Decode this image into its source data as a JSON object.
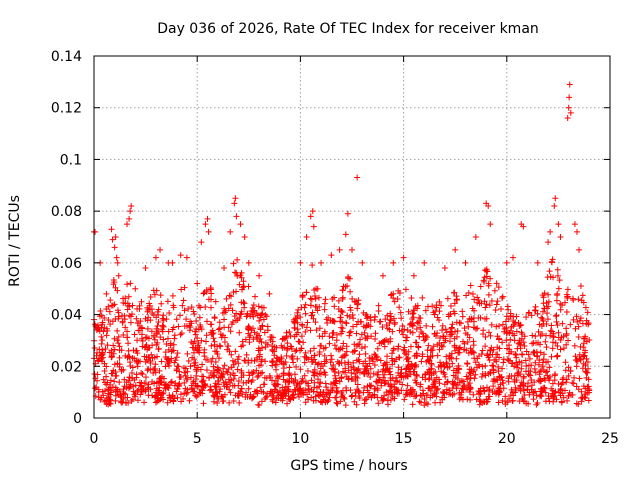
{
  "chart_data": {
    "type": "scatter",
    "title": "Day 036 of 2026, Rate Of TEC Index for receiver kman",
    "xlabel": "GPS time / hours",
    "ylabel": "ROTI / TECUs",
    "xlim": [
      0,
      25
    ],
    "ylim": [
      0,
      0.14
    ],
    "xticks": [
      0,
      5,
      10,
      15,
      20,
      25
    ],
    "xtick_labels": [
      "0",
      "5",
      "10",
      "15",
      "20",
      "25"
    ],
    "yticks": [
      0,
      0.02,
      0.04,
      0.06,
      0.08,
      0.1,
      0.12,
      0.14
    ],
    "ytick_labels": [
      "0",
      "0.02",
      "0.04",
      "0.06",
      "0.08",
      "0.1",
      "0.12",
      "0.14"
    ],
    "grid": true,
    "marker": "plus",
    "color": "#ff0000",
    "data_extent_hours": [
      0,
      24
    ],
    "typical_range": [
      0.01,
      0.04
    ],
    "series": [
      {
        "name": "ROTI",
        "points": [
          [
            0.0,
            0.072
          ],
          [
            0.05,
            0.072
          ],
          [
            0.3,
            0.06
          ],
          [
            0.6,
            0.048
          ],
          [
            0.85,
            0.073
          ],
          [
            0.9,
            0.069
          ],
          [
            1.0,
            0.066
          ],
          [
            1.05,
            0.07
          ],
          [
            1.1,
            0.062
          ],
          [
            1.15,
            0.06
          ],
          [
            1.2,
            0.055
          ],
          [
            1.6,
            0.075
          ],
          [
            1.7,
            0.077
          ],
          [
            1.75,
            0.08
          ],
          [
            1.8,
            0.082
          ],
          [
            2.0,
            0.05
          ],
          [
            2.5,
            0.058
          ],
          [
            3.0,
            0.062
          ],
          [
            3.2,
            0.065
          ],
          [
            3.6,
            0.06
          ],
          [
            3.8,
            0.06
          ],
          [
            4.2,
            0.063
          ],
          [
            4.5,
            0.062
          ],
          [
            5.0,
            0.052
          ],
          [
            5.2,
            0.068
          ],
          [
            5.4,
            0.075
          ],
          [
            5.5,
            0.077
          ],
          [
            5.55,
            0.072
          ],
          [
            5.9,
            0.045
          ],
          [
            6.3,
            0.058
          ],
          [
            6.6,
            0.072
          ],
          [
            6.8,
            0.083
          ],
          [
            6.85,
            0.085
          ],
          [
            6.9,
            0.078
          ],
          [
            7.1,
            0.075
          ],
          [
            7.3,
            0.07
          ],
          [
            7.5,
            0.06
          ],
          [
            8.0,
            0.055
          ],
          [
            8.5,
            0.048
          ],
          [
            10.0,
            0.06
          ],
          [
            10.3,
            0.07
          ],
          [
            10.5,
            0.078
          ],
          [
            10.6,
            0.08
          ],
          [
            10.65,
            0.074
          ],
          [
            11.0,
            0.06
          ],
          [
            11.5,
            0.063
          ],
          [
            11.9,
            0.065
          ],
          [
            12.2,
            0.071
          ],
          [
            12.3,
            0.079
          ],
          [
            12.5,
            0.065
          ],
          [
            12.75,
            0.093
          ],
          [
            13.0,
            0.06
          ],
          [
            14.0,
            0.055
          ],
          [
            14.5,
            0.06
          ],
          [
            15.0,
            0.062
          ],
          [
            15.5,
            0.055
          ],
          [
            16.0,
            0.06
          ],
          [
            17.0,
            0.058
          ],
          [
            17.5,
            0.065
          ],
          [
            18.0,
            0.06
          ],
          [
            18.5,
            0.07
          ],
          [
            19.0,
            0.083
          ],
          [
            19.1,
            0.082
          ],
          [
            19.2,
            0.075
          ],
          [
            20.0,
            0.06
          ],
          [
            20.3,
            0.062
          ],
          [
            20.7,
            0.075
          ],
          [
            20.8,
            0.074
          ],
          [
            21.5,
            0.06
          ],
          [
            22.0,
            0.068
          ],
          [
            22.1,
            0.072
          ],
          [
            22.3,
            0.082
          ],
          [
            22.35,
            0.085
          ],
          [
            22.5,
            0.075
          ],
          [
            22.6,
            0.07
          ],
          [
            22.95,
            0.116
          ],
          [
            23.0,
            0.12
          ],
          [
            23.02,
            0.124
          ],
          [
            23.05,
            0.129
          ],
          [
            23.1,
            0.118
          ],
          [
            23.3,
            0.075
          ],
          [
            23.4,
            0.072
          ],
          [
            23.5,
            0.065
          ],
          [
            12.2,
            0.005
          ],
          [
            3.0,
            0.006
          ],
          [
            8.0,
            0.005
          ],
          [
            16.0,
            0.005
          ]
        ],
        "envelope": [
          [
            0.0,
            0.04
          ],
          [
            0.4,
            0.042
          ],
          [
            0.8,
            0.05
          ],
          [
            1.0,
            0.058
          ],
          [
            1.3,
            0.044
          ],
          [
            1.7,
            0.055
          ],
          [
            2.0,
            0.042
          ],
          [
            2.5,
            0.047
          ],
          [
            3.0,
            0.05
          ],
          [
            3.5,
            0.048
          ],
          [
            4.0,
            0.052
          ],
          [
            4.5,
            0.05
          ],
          [
            5.0,
            0.04
          ],
          [
            5.3,
            0.052
          ],
          [
            5.6,
            0.058
          ],
          [
            5.9,
            0.035
          ],
          [
            6.2,
            0.04
          ],
          [
            6.5,
            0.05
          ],
          [
            6.9,
            0.065
          ],
          [
            7.2,
            0.058
          ],
          [
            7.6,
            0.05
          ],
          [
            8.0,
            0.045
          ],
          [
            8.4,
            0.043
          ],
          [
            8.7,
            0.03
          ],
          [
            9.0,
            0.03
          ],
          [
            9.5,
            0.035
          ],
          [
            10.0,
            0.045
          ],
          [
            10.3,
            0.055
          ],
          [
            10.6,
            0.06
          ],
          [
            11.0,
            0.045
          ],
          [
            11.5,
            0.048
          ],
          [
            12.0,
            0.05
          ],
          [
            12.3,
            0.058
          ],
          [
            12.6,
            0.048
          ],
          [
            13.0,
            0.045
          ],
          [
            13.5,
            0.042
          ],
          [
            14.0,
            0.046
          ],
          [
            14.5,
            0.05
          ],
          [
            15.0,
            0.052
          ],
          [
            15.5,
            0.045
          ],
          [
            16.0,
            0.05
          ],
          [
            16.5,
            0.045
          ],
          [
            17.0,
            0.046
          ],
          [
            17.5,
            0.05
          ],
          [
            18.0,
            0.048
          ],
          [
            18.5,
            0.055
          ],
          [
            19.0,
            0.058
          ],
          [
            19.3,
            0.055
          ],
          [
            19.7,
            0.05
          ],
          [
            20.0,
            0.044
          ],
          [
            20.5,
            0.04
          ],
          [
            21.0,
            0.04
          ],
          [
            21.5,
            0.045
          ],
          [
            22.0,
            0.055
          ],
          [
            22.3,
            0.065
          ],
          [
            22.7,
            0.052
          ],
          [
            23.0,
            0.05
          ],
          [
            23.4,
            0.058
          ],
          [
            23.7,
            0.05
          ],
          [
            24.0,
            0.04
          ]
        ]
      }
    ]
  }
}
